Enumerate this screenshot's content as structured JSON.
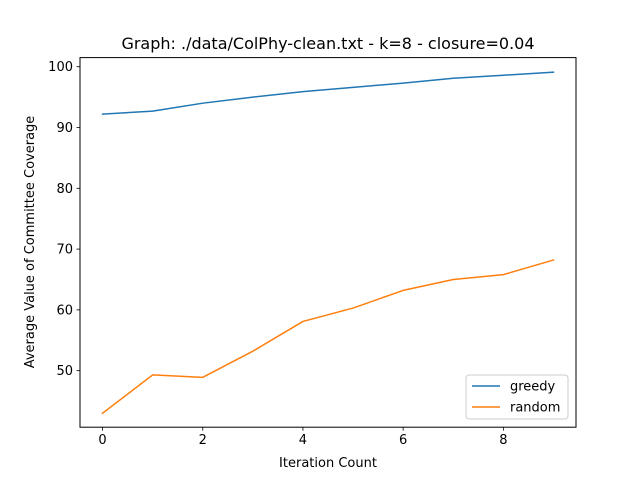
{
  "chart_data": {
    "type": "line",
    "title": "Graph: ./data/ColPhy-clean.txt - k=8 - closure=0.04",
    "xlabel": "Iteration Count",
    "ylabel": "Average Value of Committee Coverage",
    "x": [
      0,
      1,
      2,
      3,
      4,
      5,
      6,
      7,
      8,
      9
    ],
    "xlim": [
      -0.45,
      9.45
    ],
    "ylim": [
      40.7,
      101.5
    ],
    "xticks": [
      0,
      2,
      4,
      6,
      8
    ],
    "yticks": [
      50,
      60,
      70,
      80,
      90,
      100
    ],
    "grid": false,
    "legend_position": "lower-right",
    "series": [
      {
        "name": "greedy",
        "color": "#1f77b4",
        "values": [
          92.2,
          92.7,
          94.0,
          95.0,
          95.9,
          96.6,
          97.3,
          98.1,
          98.6,
          99.1
        ]
      },
      {
        "name": "random",
        "color": "#ff7f0e",
        "values": [
          43.0,
          49.3,
          48.9,
          53.2,
          58.1,
          60.3,
          63.2,
          65.0,
          65.8,
          68.2
        ]
      }
    ]
  }
}
